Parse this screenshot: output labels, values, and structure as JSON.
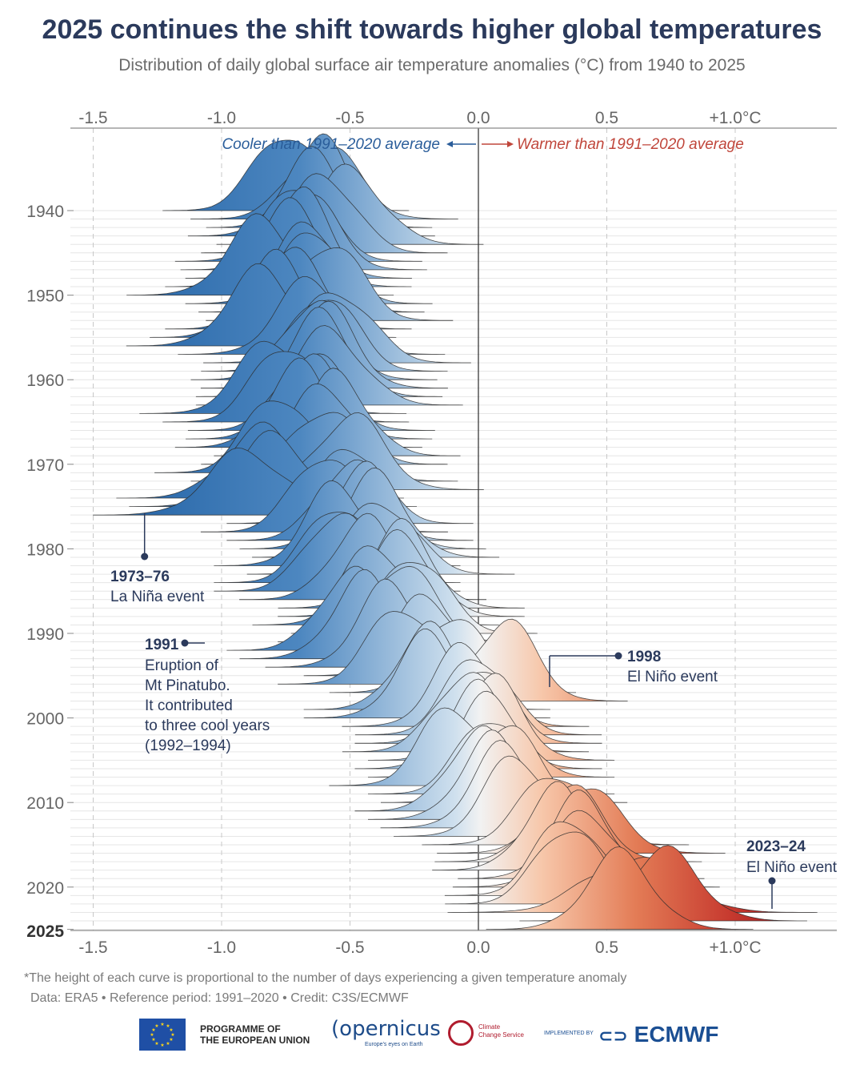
{
  "title": "2025 continues the shift towards higher global temperatures",
  "subtitle": "Distribution of daily global surface air temperature anomalies (°C) from 1940 to 2025",
  "footnote": "*The height of each curve is proportional to the number of days experiencing a given temperature anomaly",
  "source": "Data: ERA5 • Reference period: 1991–2020 • Credit: C3S/ECMWF",
  "logos": {
    "eu": "PROGRAMME OF THE EUROPEAN UNION",
    "eu_line1": "PROGRAMME OF",
    "eu_line2": "THE EUROPEAN UNION",
    "copernicus": "opernicus",
    "copernicus_tag": "Europe's eyes on Earth",
    "ccs_line1": "Climate",
    "ccs_line2": "Change Service",
    "implemented": "IMPLEMENTED BY",
    "ecmwf": "ECMWF"
  },
  "chart_data": {
    "type": "area",
    "subtype": "ridgeline",
    "xlim": [
      -1.5,
      1.3
    ],
    "x_ticks": [
      -1.5,
      -1.0,
      -0.5,
      0.0,
      0.5,
      1.0
    ],
    "x_tick_labels": [
      "-1.5",
      "-1.0",
      "-0.5",
      "0.0",
      "0.5",
      "+1.0°C"
    ],
    "x_axis_position": "top and bottom",
    "y_ticks": [
      1940,
      1950,
      1960,
      1970,
      1980,
      1990,
      2000,
      2010,
      2020,
      2025
    ],
    "y_tick_labels": [
      "1940",
      "1950",
      "1960",
      "1970",
      "1980",
      "1990",
      "2000",
      "2010",
      "2020",
      "2025"
    ],
    "grid": true,
    "color_scale": {
      "cool": "#1f5fa3",
      "neutral": "#f2f2f2",
      "warm": "#a8171d"
    },
    "direction_labels": {
      "cooler": "Cooler than 1991–2020 average",
      "warmer": "Warmer than 1991–2020 average"
    },
    "annotations": [
      {
        "year": 1975,
        "x": -1.3,
        "title": "1973–76",
        "lines": [
          "La Niña event"
        ]
      },
      {
        "year": 1991,
        "x": -1.15,
        "title": "1991",
        "lines": [
          "Eruption of",
          "Mt Pinatubo.",
          "It contributed",
          "to three cool years",
          "(1992–1994)"
        ]
      },
      {
        "year": 1997,
        "x": 0.27,
        "title": "1998",
        "lines": [
          "El Niño event"
        ]
      },
      {
        "year": 2023,
        "x": 1.1,
        "title": "2023–24",
        "lines": [
          "El Niño event"
        ]
      }
    ],
    "series": [
      {
        "year": 1940,
        "mean": -0.75,
        "sd": 0.12
      },
      {
        "year": 1941,
        "mean": -0.6,
        "sd": 0.13
      },
      {
        "year": 1942,
        "mean": -0.62,
        "sd": 0.11
      },
      {
        "year": 1943,
        "mean": -0.65,
        "sd": 0.12
      },
      {
        "year": 1944,
        "mean": -0.5,
        "sd": 0.13
      },
      {
        "year": 1945,
        "mean": -0.6,
        "sd": 0.12
      },
      {
        "year": 1946,
        "mean": -0.7,
        "sd": 0.12
      },
      {
        "year": 1947,
        "mean": -0.68,
        "sd": 0.12
      },
      {
        "year": 1948,
        "mean": -0.7,
        "sd": 0.11
      },
      {
        "year": 1949,
        "mean": -0.74,
        "sd": 0.12
      },
      {
        "year": 1950,
        "mean": -0.85,
        "sd": 0.13
      },
      {
        "year": 1951,
        "mean": -0.66,
        "sd": 0.12
      },
      {
        "year": 1952,
        "mean": -0.65,
        "sd": 0.11
      },
      {
        "year": 1953,
        "mean": -0.58,
        "sd": 0.12
      },
      {
        "year": 1954,
        "mean": -0.74,
        "sd": 0.12
      },
      {
        "year": 1955,
        "mean": -0.8,
        "sd": 0.12
      },
      {
        "year": 1956,
        "mean": -0.85,
        "sd": 0.13
      },
      {
        "year": 1957,
        "mean": -0.65,
        "sd": 0.13
      },
      {
        "year": 1958,
        "mean": -0.55,
        "sd": 0.13
      },
      {
        "year": 1959,
        "mean": -0.6,
        "sd": 0.12
      },
      {
        "year": 1960,
        "mean": -0.64,
        "sd": 0.12
      },
      {
        "year": 1961,
        "mean": -0.6,
        "sd": 0.12
      },
      {
        "year": 1962,
        "mean": -0.62,
        "sd": 0.12
      },
      {
        "year": 1963,
        "mean": -0.58,
        "sd": 0.13
      },
      {
        "year": 1964,
        "mean": -0.8,
        "sd": 0.13
      },
      {
        "year": 1965,
        "mean": -0.75,
        "sd": 0.12
      },
      {
        "year": 1966,
        "mean": -0.65,
        "sd": 0.12
      },
      {
        "year": 1967,
        "mean": -0.66,
        "sd": 0.12
      },
      {
        "year": 1968,
        "mean": -0.7,
        "sd": 0.12
      },
      {
        "year": 1969,
        "mean": -0.55,
        "sd": 0.12
      },
      {
        "year": 1970,
        "mean": -0.6,
        "sd": 0.12
      },
      {
        "year": 1971,
        "mean": -0.78,
        "sd": 0.12
      },
      {
        "year": 1972,
        "mean": -0.6,
        "sd": 0.13
      },
      {
        "year": 1973,
        "mean": -0.5,
        "sd": 0.13
      },
      {
        "year": 1974,
        "mean": -0.85,
        "sd": 0.14
      },
      {
        "year": 1975,
        "mean": -0.8,
        "sd": 0.14
      },
      {
        "year": 1976,
        "mean": -0.9,
        "sd": 0.15
      },
      {
        "year": 1977,
        "mean": -0.5,
        "sd": 0.12
      },
      {
        "year": 1978,
        "mean": -0.6,
        "sd": 0.12
      },
      {
        "year": 1979,
        "mean": -0.5,
        "sd": 0.12
      },
      {
        "year": 1980,
        "mean": -0.45,
        "sd": 0.12
      },
      {
        "year": 1981,
        "mean": -0.4,
        "sd": 0.12
      },
      {
        "year": 1982,
        "mean": -0.55,
        "sd": 0.12
      },
      {
        "year": 1983,
        "mean": -0.38,
        "sd": 0.13
      },
      {
        "year": 1984,
        "mean": -0.55,
        "sd": 0.12
      },
      {
        "year": 1985,
        "mean": -0.55,
        "sd": 0.12
      },
      {
        "year": 1986,
        "mean": -0.45,
        "sd": 0.12
      },
      {
        "year": 1987,
        "mean": -0.3,
        "sd": 0.12
      },
      {
        "year": 1988,
        "mean": -0.3,
        "sd": 0.12
      },
      {
        "year": 1989,
        "mean": -0.4,
        "sd": 0.12
      },
      {
        "year": 1990,
        "mean": -0.25,
        "sd": 0.12
      },
      {
        "year": 1991,
        "mean": -0.3,
        "sd": 0.12
      },
      {
        "year": 1992,
        "mean": -0.5,
        "sd": 0.12
      },
      {
        "year": 1993,
        "mean": -0.45,
        "sd": 0.12
      },
      {
        "year": 1994,
        "mean": -0.35,
        "sd": 0.12
      },
      {
        "year": 1995,
        "mean": -0.2,
        "sd": 0.12
      },
      {
        "year": 1996,
        "mean": -0.3,
        "sd": 0.12
      },
      {
        "year": 1997,
        "mean": -0.1,
        "sd": 0.12
      },
      {
        "year": 1998,
        "mean": 0.1,
        "sd": 0.12
      },
      {
        "year": 1999,
        "mean": -0.2,
        "sd": 0.12
      },
      {
        "year": 2000,
        "mean": -0.2,
        "sd": 0.12
      },
      {
        "year": 2001,
        "mean": -0.05,
        "sd": 0.12
      },
      {
        "year": 2002,
        "mean": 0.0,
        "sd": 0.12
      },
      {
        "year": 2003,
        "mean": 0.0,
        "sd": 0.12
      },
      {
        "year": 2004,
        "mean": -0.05,
        "sd": 0.12
      },
      {
        "year": 2005,
        "mean": 0.05,
        "sd": 0.12
      },
      {
        "year": 2006,
        "mean": 0.0,
        "sd": 0.12
      },
      {
        "year": 2007,
        "mean": 0.05,
        "sd": 0.12
      },
      {
        "year": 2008,
        "mean": -0.1,
        "sd": 0.12
      },
      {
        "year": 2009,
        "mean": 0.05,
        "sd": 0.12
      },
      {
        "year": 2010,
        "mean": 0.1,
        "sd": 0.12
      },
      {
        "year": 2011,
        "mean": 0.0,
        "sd": 0.12
      },
      {
        "year": 2012,
        "mean": 0.05,
        "sd": 0.12
      },
      {
        "year": 2013,
        "mean": 0.1,
        "sd": 0.12
      },
      {
        "year": 2014,
        "mean": 0.15,
        "sd": 0.12
      },
      {
        "year": 2015,
        "mean": 0.3,
        "sd": 0.13
      },
      {
        "year": 2016,
        "mean": 0.4,
        "sd": 0.14
      },
      {
        "year": 2017,
        "mean": 0.35,
        "sd": 0.13
      },
      {
        "year": 2018,
        "mean": 0.3,
        "sd": 0.12
      },
      {
        "year": 2019,
        "mean": 0.4,
        "sd": 0.12
      },
      {
        "year": 2020,
        "mean": 0.42,
        "sd": 0.13
      },
      {
        "year": 2021,
        "mean": 0.35,
        "sd": 0.12
      },
      {
        "year": 2022,
        "mean": 0.35,
        "sd": 0.12
      },
      {
        "year": 2023,
        "mean": 0.6,
        "sd": 0.18
      },
      {
        "year": 2024,
        "mean": 0.72,
        "sd": 0.14
      },
      {
        "year": 2025,
        "mean": 0.55,
        "sd": 0.13
      }
    ]
  }
}
